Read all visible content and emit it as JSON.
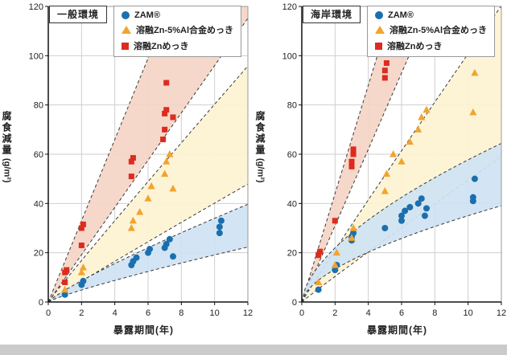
{
  "colors": {
    "zam_blue": "#1b6fae",
    "znal_orange": "#f2a42e",
    "zn_red": "#dd2b1f",
    "band_red_fill": "#f5d5c6",
    "band_yellow_fill": "#fdf3d2",
    "band_blue_fill": "#cfe3f3",
    "grid": "#cfcfcf",
    "dashed_line": "#3a3a3a"
  },
  "chart_data": [
    {
      "type": "scatter",
      "env_label": "一般環境",
      "xlabel": "暴露期間(年)",
      "ylabel": "腐食減量",
      "ylabel_unit": "(g/m²)",
      "xlim": [
        0,
        12
      ],
      "ylim": [
        0,
        120
      ],
      "xticks": [
        0,
        2,
        4,
        6,
        8,
        10,
        12
      ],
      "yticks": [
        0,
        20,
        40,
        60,
        80,
        100,
        120
      ],
      "grid": true,
      "legend_position": "top-inside",
      "series": [
        {
          "name": "ZAM®",
          "marker": "circle",
          "color": "#1b6fae",
          "points": [
            [
              1,
              3
            ],
            [
              2,
              7
            ],
            [
              2.1,
              8.5
            ],
            [
              5,
              15
            ],
            [
              5.1,
              16.5
            ],
            [
              5.3,
              18
            ],
            [
              6,
              20
            ],
            [
              6.1,
              21.5
            ],
            [
              7,
              22
            ],
            [
              7.1,
              23.5
            ],
            [
              7.3,
              25.5
            ],
            [
              7.5,
              18.5
            ],
            [
              10.3,
              28
            ],
            [
              10.3,
              30.5
            ],
            [
              10.4,
              33
            ]
          ]
        },
        {
          "name": "溶融Zn-5%Al合金めっき",
          "marker": "triangle",
          "color": "#f2a42e",
          "points": [
            [
              1,
              5
            ],
            [
              2,
              12
            ],
            [
              2.1,
              14
            ],
            [
              5,
              30
            ],
            [
              5.1,
              33
            ],
            [
              5.5,
              36.5
            ],
            [
              6,
              42
            ],
            [
              6.2,
              47
            ],
            [
              7,
              52
            ],
            [
              7.1,
              57
            ],
            [
              7.3,
              60
            ],
            [
              7.5,
              46
            ]
          ]
        },
        {
          "name": "溶融Znめっき",
          "marker": "square",
          "color": "#dd2b1f",
          "points": [
            [
              1,
              8
            ],
            [
              1,
              12
            ],
            [
              1.1,
              13
            ],
            [
              2,
              23
            ],
            [
              2,
              30
            ],
            [
              2.1,
              31.5
            ],
            [
              5,
              51
            ],
            [
              5,
              57
            ],
            [
              5.1,
              58.5
            ],
            [
              6.9,
              66
            ],
            [
              7,
              70
            ],
            [
              7,
              76.5
            ],
            [
              7.1,
              78
            ],
            [
              7.1,
              89
            ],
            [
              7.5,
              75
            ]
          ]
        }
      ],
      "bands": [
        {
          "series": "溶融Znめっき",
          "fill": "#f5d5c6",
          "a_upper": 16.5,
          "a_lower": 9.6,
          "b": 1
        },
        {
          "series": "溶融Zn-5%Al合金めっき",
          "fill": "#fdf3d2",
          "a_upper": 8.6,
          "a_lower": 4.3,
          "b": 0.97
        },
        {
          "series": "ZAM®",
          "fill": "#cfe3f3",
          "a_upper": 4.8,
          "a_lower": 2.7,
          "b": 0.85
        }
      ]
    },
    {
      "type": "scatter",
      "env_label": "海岸環境",
      "xlabel": "暴露期間(年)",
      "ylabel": "腐食減量",
      "ylabel_unit": "(g/m²)",
      "xlim": [
        0,
        12
      ],
      "ylim": [
        0,
        120
      ],
      "xticks": [
        0,
        2,
        4,
        6,
        8,
        10,
        12
      ],
      "yticks": [
        0,
        20,
        40,
        60,
        80,
        100,
        120
      ],
      "grid": true,
      "legend_position": "top-inside",
      "series": [
        {
          "name": "ZAM®",
          "marker": "circle",
          "color": "#1b6fae",
          "points": [
            [
              1,
              5
            ],
            [
              2,
              13
            ],
            [
              2.1,
              15
            ],
            [
              3,
              25
            ],
            [
              3,
              26.5
            ],
            [
              3.1,
              28
            ],
            [
              5,
              30
            ],
            [
              6,
              33
            ],
            [
              6,
              35
            ],
            [
              6.2,
              37
            ],
            [
              6.5,
              38.5
            ],
            [
              7,
              40
            ],
            [
              7.2,
              42
            ],
            [
              7.4,
              35
            ],
            [
              7.5,
              38
            ],
            [
              10.3,
              41
            ],
            [
              10.3,
              42.5
            ],
            [
              10.4,
              50
            ]
          ]
        },
        {
          "name": "溶融Zn-5%Al合金めっき",
          "marker": "triangle",
          "color": "#f2a42e",
          "points": [
            [
              1,
              8
            ],
            [
              2,
              15
            ],
            [
              2.1,
              20
            ],
            [
              3,
              26
            ],
            [
              3.1,
              30
            ],
            [
              5,
              45
            ],
            [
              5.1,
              52
            ],
            [
              5.5,
              60
            ],
            [
              6,
              57
            ],
            [
              6.5,
              65
            ],
            [
              7,
              70
            ],
            [
              7.2,
              75
            ],
            [
              7.5,
              78
            ],
            [
              10.3,
              77
            ],
            [
              10.4,
              93
            ]
          ]
        },
        {
          "name": "溶融Znめっき",
          "marker": "square",
          "color": "#dd2b1f",
          "points": [
            [
              1,
              19
            ],
            [
              1.1,
              20.5
            ],
            [
              2,
              33
            ],
            [
              3,
              55
            ],
            [
              3,
              57
            ],
            [
              3.1,
              60
            ],
            [
              3.1,
              62
            ],
            [
              5,
              91
            ],
            [
              5,
              94
            ],
            [
              5.1,
              97
            ]
          ]
        }
      ],
      "bands": [
        {
          "series": "溶融Znめっき",
          "fill": "#f5d5c6",
          "a_upper": 22,
          "a_lower": 15.5,
          "b": 1
        },
        {
          "series": "溶融Zn-5%Al合金めっき",
          "fill": "#fdf3d2",
          "a_upper": 10.8,
          "a_lower": 5.3,
          "b": 0.97
        },
        {
          "series": "ZAM®",
          "fill": "#cfe3f3",
          "a_upper": 14.5,
          "a_lower": 8.8,
          "b": 0.6
        }
      ]
    }
  ]
}
